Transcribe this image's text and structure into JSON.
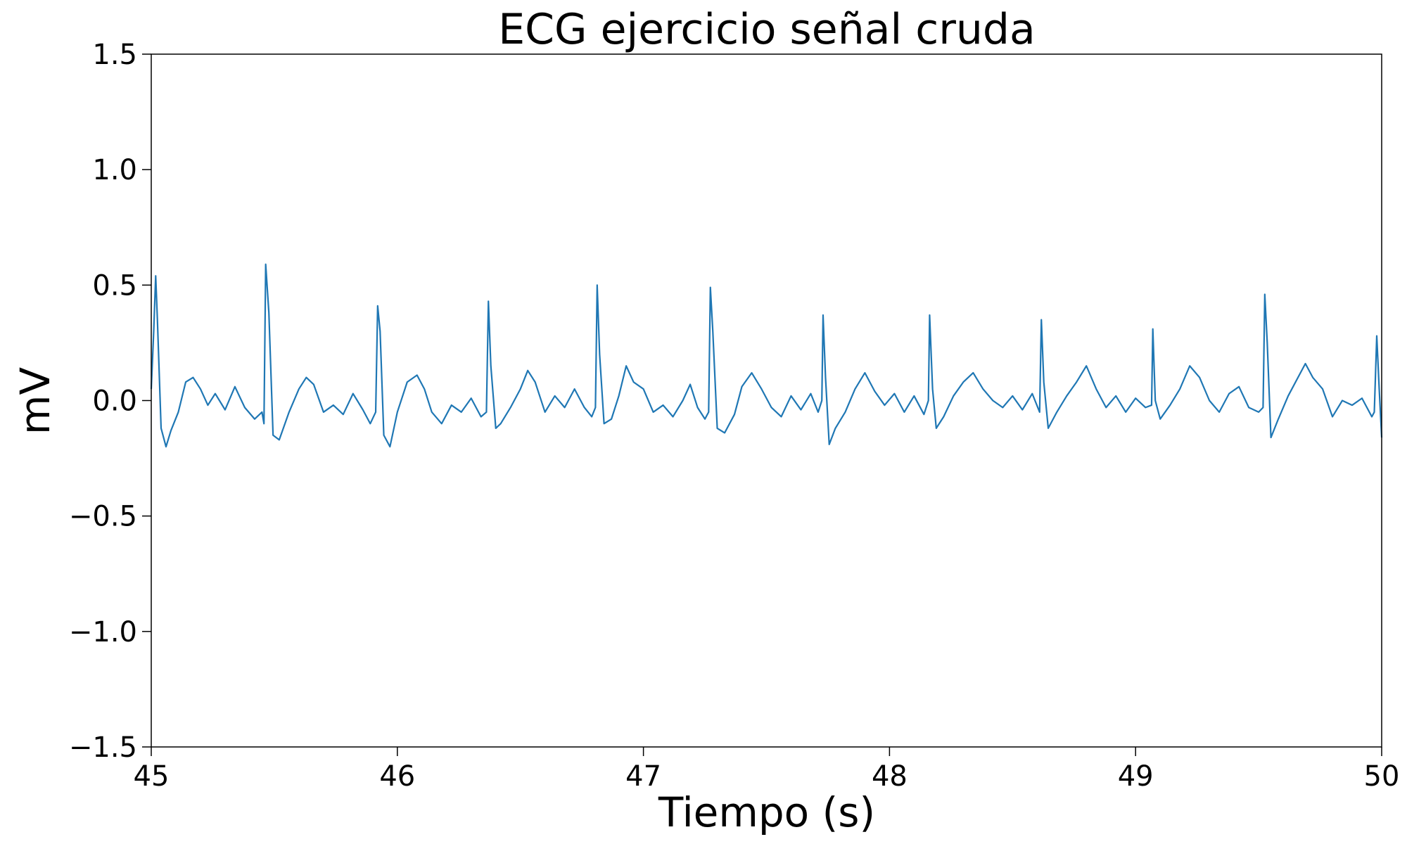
{
  "chart_data": {
    "type": "line",
    "title": "ECG ejercicio señal cruda",
    "xlabel": "Tiempo (s)",
    "ylabel": "mV",
    "color": "#1f77b4",
    "x": [
      45.0,
      45.01,
      45.018,
      45.025,
      45.04,
      45.06,
      45.08,
      45.11,
      45.14,
      45.17,
      45.2,
      45.23,
      45.26,
      45.3,
      45.34,
      45.38,
      45.42,
      45.45,
      45.458,
      45.465,
      45.478,
      45.495,
      45.52,
      45.56,
      45.6,
      45.63,
      45.66,
      45.7,
      45.74,
      45.78,
      45.82,
      45.86,
      45.89,
      45.912,
      45.92,
      45.93,
      45.945,
      45.97,
      46.0,
      46.04,
      46.08,
      46.11,
      46.14,
      46.18,
      46.22,
      46.26,
      46.3,
      46.34,
      46.362,
      46.37,
      46.38,
      46.4,
      46.42,
      46.46,
      46.5,
      46.53,
      46.56,
      46.6,
      46.64,
      46.68,
      46.72,
      46.76,
      46.79,
      46.805,
      46.812,
      46.822,
      46.84,
      46.87,
      46.9,
      46.93,
      46.96,
      47.0,
      47.04,
      47.08,
      47.12,
      47.16,
      47.19,
      47.22,
      47.25,
      47.265,
      47.272,
      47.282,
      47.3,
      47.33,
      47.37,
      47.4,
      47.44,
      47.48,
      47.52,
      47.56,
      47.6,
      47.64,
      47.68,
      47.71,
      47.725,
      47.73,
      47.74,
      47.755,
      47.78,
      47.82,
      47.86,
      47.9,
      47.94,
      47.98,
      48.02,
      48.06,
      48.1,
      48.14,
      48.158,
      48.163,
      48.175,
      48.19,
      48.22,
      48.26,
      48.3,
      48.34,
      48.38,
      48.42,
      48.46,
      48.5,
      48.54,
      48.58,
      48.61,
      48.617,
      48.627,
      48.645,
      48.68,
      48.72,
      48.76,
      48.8,
      48.84,
      48.88,
      48.92,
      48.96,
      49.0,
      49.04,
      49.065,
      49.07,
      49.08,
      49.1,
      49.14,
      49.18,
      49.22,
      49.26,
      49.3,
      49.34,
      49.38,
      49.42,
      49.46,
      49.5,
      49.518,
      49.525,
      49.535,
      49.55,
      49.58,
      49.62,
      49.66,
      49.69,
      49.72,
      49.76,
      49.8,
      49.84,
      49.88,
      49.92,
      49.96,
      49.97,
      49.98,
      49.99,
      50.0
    ],
    "values": [
      0.05,
      0.3,
      0.54,
      0.35,
      -0.12,
      -0.2,
      -0.13,
      -0.05,
      0.08,
      0.1,
      0.05,
      -0.02,
      0.03,
      -0.04,
      0.06,
      -0.03,
      -0.08,
      -0.05,
      -0.1,
      0.59,
      0.38,
      -0.15,
      -0.17,
      -0.05,
      0.05,
      0.1,
      0.07,
      -0.05,
      -0.02,
      -0.06,
      0.03,
      -0.04,
      -0.1,
      -0.05,
      0.41,
      0.3,
      -0.15,
      -0.2,
      -0.05,
      0.08,
      0.11,
      0.05,
      -0.05,
      -0.1,
      -0.02,
      -0.05,
      0.01,
      -0.07,
      -0.05,
      0.43,
      0.15,
      -0.12,
      -0.1,
      -0.03,
      0.05,
      0.13,
      0.08,
      -0.05,
      0.02,
      -0.03,
      0.05,
      -0.03,
      -0.07,
      -0.03,
      0.5,
      0.2,
      -0.1,
      -0.08,
      0.02,
      0.15,
      0.08,
      0.05,
      -0.05,
      -0.02,
      -0.07,
      0,
      0.07,
      -0.03,
      -0.08,
      -0.05,
      0.49,
      0.3,
      -0.12,
      -0.14,
      -0.06,
      0.06,
      0.12,
      0.05,
      -0.03,
      -0.07,
      0.02,
      -0.04,
      0.03,
      -0.05,
      0,
      0.37,
      0.1,
      -0.19,
      -0.12,
      -0.05,
      0.05,
      0.12,
      0.04,
      -0.02,
      0.03,
      -0.05,
      0.02,
      -0.06,
      0,
      0.37,
      0.05,
      -0.12,
      -0.07,
      0.02,
      0.08,
      0.12,
      0.05,
      0,
      -0.03,
      0.02,
      -0.04,
      0.03,
      -0.05,
      0.35,
      0.08,
      -0.12,
      -0.05,
      0.02,
      0.08,
      0.15,
      0.05,
      -0.03,
      0.02,
      -0.05,
      0.01,
      -0.03,
      -0.02,
      0.31,
      0,
      -0.08,
      -0.02,
      0.05,
      0.15,
      0.1,
      0,
      -0.05,
      0.03,
      0.06,
      -0.03,
      -0.05,
      -0.03,
      0.46,
      0.25,
      -0.16,
      -0.08,
      0.02,
      0.1,
      0.16,
      0.1,
      0.05,
      -0.07,
      0,
      -0.02,
      0.01,
      -0.07,
      -0.05,
      0.28,
      0.05,
      -0.16
    ],
    "xlim": [
      45,
      50
    ],
    "xticks": [
      45,
      46,
      47,
      48,
      49,
      50
    ],
    "ylim": [
      -1.5,
      1.5
    ],
    "yticks": [
      {
        "value": -1.5,
        "label": "−1.5"
      },
      {
        "value": -1.0,
        "label": "−1.0"
      },
      {
        "value": -0.5,
        "label": "−0.5"
      },
      {
        "value": 0,
        "label": "0.0"
      },
      0.5,
      {
        "value": 1.0,
        "label": "1.0"
      },
      1.5
    ],
    "grid": false
  }
}
